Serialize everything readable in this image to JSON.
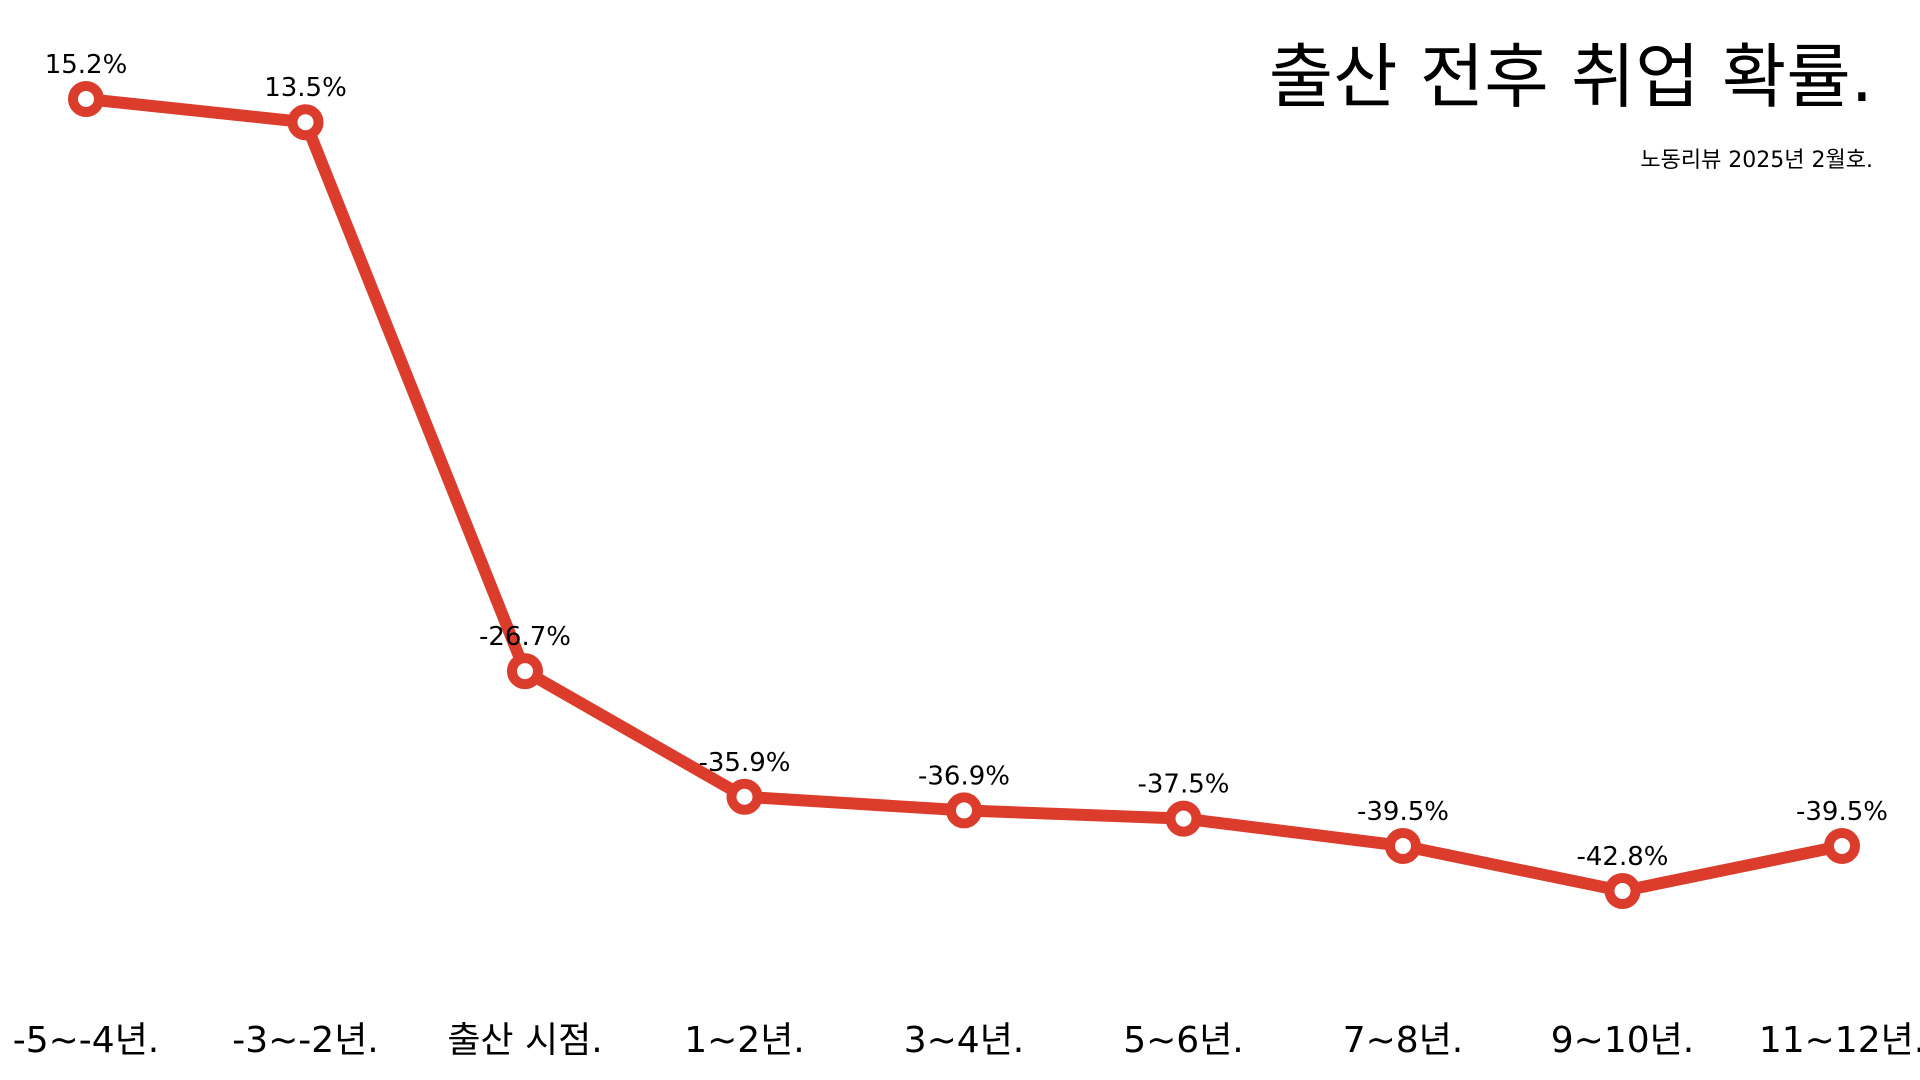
{
  "chart_data": {
    "type": "line",
    "title": "출산 전후 취업 확률.",
    "subtitle": "노동리뷰 2025년 2월호.",
    "categories": [
      "-5~-4년.",
      "-3~-2년.",
      "출산 시점.",
      "1~2년.",
      "3~4년.",
      "5~6년.",
      "7~8년.",
      "9~10년.",
      "11~12년."
    ],
    "series": [
      {
        "values": [
          15.2,
          13.5,
          -26.7,
          -35.9,
          -36.9,
          -37.5,
          -39.5,
          -42.8,
          -39.5
        ],
        "value_labels": [
          "15.2%",
          "13.5%",
          "-26.7%",
          "-35.9%",
          "-36.9%",
          "-37.5%",
          "-39.5%",
          "-42.8%",
          "-39.5%"
        ],
        "color": "#dc3c2c",
        "marker": "hollow-circle"
      }
    ],
    "grid": false,
    "axes_visible": false
  }
}
